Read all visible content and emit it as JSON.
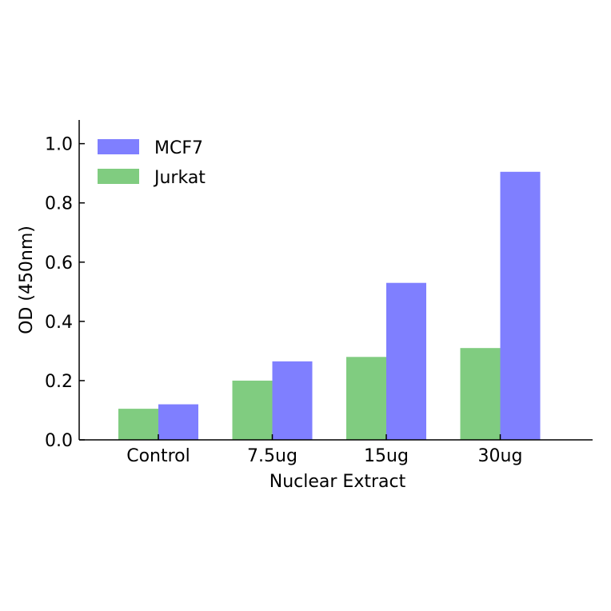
{
  "chart_data": {
    "type": "bar",
    "xlabel": "Nuclear Extract",
    "ylabel": "OD (450nm)",
    "ylim": [
      0,
      1.08
    ],
    "yticks": [
      "0.0",
      "0.2",
      "0.4",
      "0.6",
      "0.8",
      "1.0"
    ],
    "categories": [
      "Control",
      "7.5ug",
      "15ug",
      "30ug"
    ],
    "series": [
      {
        "name": "Jurkat",
        "color": "#80cc80",
        "values": [
          0.105,
          0.2,
          0.28,
          0.31
        ]
      },
      {
        "name": "MCF7",
        "color": "#7f7fff",
        "values": [
          0.12,
          0.265,
          0.53,
          0.905
        ]
      }
    ],
    "legend": {
      "placement": "top-left",
      "order": [
        "MCF7",
        "Jurkat"
      ]
    },
    "grid": false
  }
}
